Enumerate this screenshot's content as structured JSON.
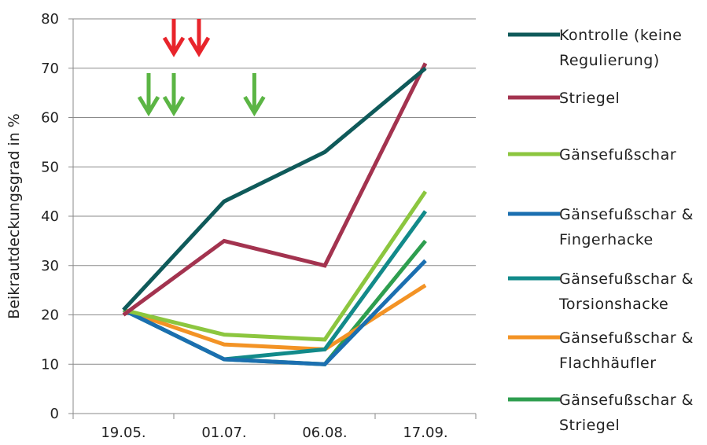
{
  "chart_data": {
    "type": "line",
    "categories": [
      "19.05.",
      "01.07.",
      "06.08.",
      "17.09."
    ],
    "ylabel": "Beikrautdeckungsgrad in %",
    "ylim": [
      0,
      80
    ],
    "yticks": [
      0,
      10,
      20,
      30,
      40,
      50,
      60,
      70,
      80
    ],
    "grid": true,
    "legend_position": "right",
    "series": [
      {
        "name": "Kontrolle (keine Regulierung)",
        "legend_lines": [
          "Kontrolle (keine",
          "Regulierung)"
        ],
        "color": "#0f5a5a",
        "values": [
          21,
          43,
          53,
          70
        ]
      },
      {
        "name": "Striegel",
        "legend_lines": [
          "Striegel"
        ],
        "color": "#a3334f",
        "values": [
          20,
          35,
          30,
          71
        ]
      },
      {
        "name": "Gänsefußschar",
        "legend_lines": [
          "Gänsefußschar"
        ],
        "color": "#8cc63f",
        "values": [
          21,
          16,
          15,
          45
        ]
      },
      {
        "name": "Gänsefußschar & Fingerhacke",
        "legend_lines": [
          "Gänsefußschar &",
          "Fingerhacke"
        ],
        "color": "#1b6fb0",
        "values": [
          21,
          11,
          10,
          31
        ]
      },
      {
        "name": "Gänsefußschar & Torsionshacke",
        "legend_lines": [
          "Gänsefußschar &",
          "Torsionshacke"
        ],
        "color": "#128a8a",
        "values": [
          21,
          11,
          13,
          41
        ]
      },
      {
        "name": "Gänsefußschar & Flachhäufler",
        "legend_lines": [
          "Gänsefußschar &",
          "Flachhäufler"
        ],
        "color": "#f39325",
        "values": [
          21,
          14,
          13,
          26
        ]
      },
      {
        "name": "Gänsefußschar & Striegel",
        "legend_lines": [
          "Gänsefußschar &",
          "Striegel"
        ],
        "color": "#2e9e4f",
        "values": [
          21,
          11,
          10,
          35
        ]
      }
    ],
    "annotations": {
      "red_arrows": {
        "color": "#e8242b",
        "at": [
          1.5,
          1.75
        ],
        "y_top": 80,
        "y_bottom": 73
      },
      "green_arrows": {
        "color": "#5bb544",
        "at": [
          1.25,
          1.5,
          2.3
        ],
        "y_top": 69,
        "y_bottom": 61
      }
    }
  }
}
